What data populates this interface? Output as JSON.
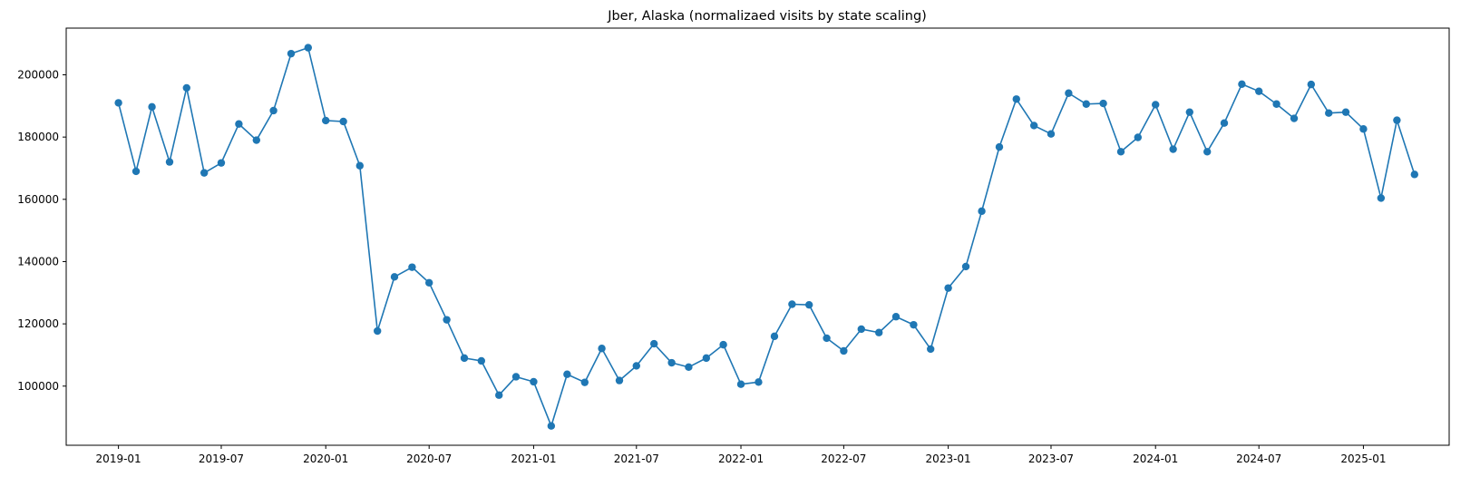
{
  "chart_data": {
    "type": "line",
    "title": "Jber, Alaska (normalizaed visits by state scaling)",
    "xlabel": "",
    "ylabel": "",
    "marker": "circle",
    "color": "#1f77b4",
    "grid": false,
    "xlim": [
      "2018-10-01",
      "2025-06-01"
    ],
    "ylim": [
      81000,
      215000
    ],
    "x_ticks": [
      "2019-01",
      "2019-07",
      "2020-01",
      "2020-07",
      "2021-01",
      "2021-07",
      "2022-01",
      "2022-07",
      "2023-01",
      "2023-07",
      "2024-01",
      "2024-07",
      "2025-01"
    ],
    "y_ticks": [
      100000,
      120000,
      140000,
      160000,
      180000,
      200000
    ],
    "series": [
      {
        "x": [
          "2019-01",
          "2019-02",
          "2019-03",
          "2019-04",
          "2019-05",
          "2019-06",
          "2019-07",
          "2019-08",
          "2019-09",
          "2019-10",
          "2019-11",
          "2019-12",
          "2020-01",
          "2020-02",
          "2020-03",
          "2020-04",
          "2020-05",
          "2020-06",
          "2020-07",
          "2020-08",
          "2020-09",
          "2020-10",
          "2020-11",
          "2020-12",
          "2021-01",
          "2021-02",
          "2021-03",
          "2021-04",
          "2021-05",
          "2021-06",
          "2021-07",
          "2021-08",
          "2021-09",
          "2021-10",
          "2021-11",
          "2021-12",
          "2022-01",
          "2022-02",
          "2022-03",
          "2022-04",
          "2022-05",
          "2022-06",
          "2022-07",
          "2022-08",
          "2022-09",
          "2022-10",
          "2022-11",
          "2022-12",
          "2023-01",
          "2023-02",
          "2023-03",
          "2023-04",
          "2023-05",
          "2023-06",
          "2023-07",
          "2023-08",
          "2023-09",
          "2023-10",
          "2023-11",
          "2023-12",
          "2024-01",
          "2024-02",
          "2024-03",
          "2024-04",
          "2024-05",
          "2024-06",
          "2024-07",
          "2024-08",
          "2024-09",
          "2024-10",
          "2024-11",
          "2024-12",
          "2025-01",
          "2025-02",
          "2025-03",
          "2025-04"
        ],
        "values": [
          191000,
          169000,
          189700,
          172000,
          195800,
          168500,
          171700,
          184200,
          179000,
          188500,
          206800,
          208700,
          185300,
          185000,
          170800,
          117700,
          135100,
          138200,
          133200,
          121300,
          109000,
          108100,
          97100,
          103000,
          101400,
          87200,
          103800,
          101200,
          112100,
          101800,
          106500,
          113600,
          107500,
          106100,
          109000,
          113300,
          100600,
          101300,
          116000,
          126300,
          126100,
          115400,
          111300,
          118300,
          117200,
          122300,
          119700,
          111900,
          131500,
          138400,
          156200,
          176800,
          192200,
          183700,
          181000,
          194100,
          190600,
          190800,
          175300,
          179900,
          190400,
          176100,
          188000,
          175300,
          184500,
          197000,
          194700,
          190600,
          186000,
          196900,
          187700,
          188000,
          182600,
          160400,
          185400,
          168000
        ]
      }
    ]
  }
}
